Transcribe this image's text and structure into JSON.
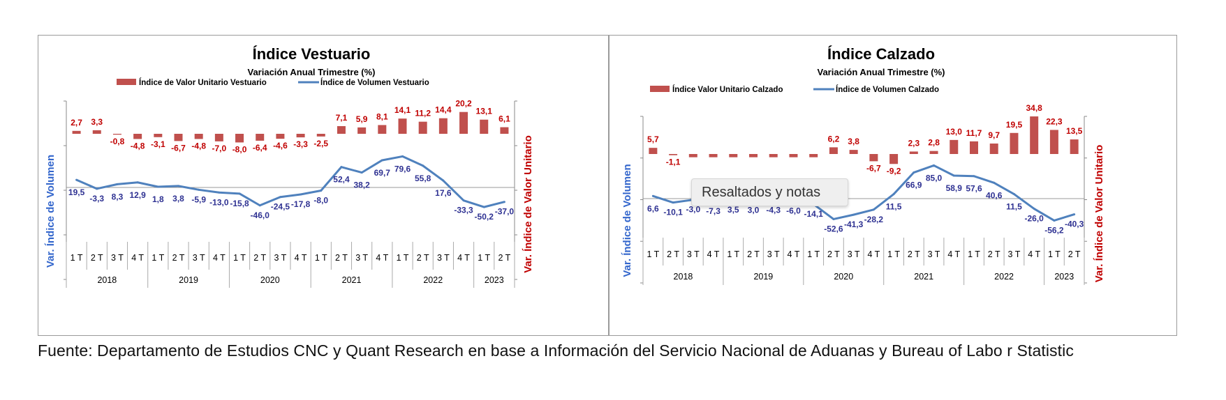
{
  "chart_data": [
    {
      "type": "bar",
      "title": "Índice Vestuario",
      "subtitle": "Variación Anual Trimestre  (%)",
      "ylabel_left": "Var. Índice de Volumen",
      "ylabel_right": "Var. Índice de Valor Unitario",
      "legend_position": "top",
      "grid": false,
      "categories": [
        "1 T",
        "2 T",
        "3 T",
        "4 T",
        "1 T",
        "2 T",
        "3 T",
        "4 T",
        "1 T",
        "2 T",
        "3 T",
        "4 T",
        "1 T",
        "2 T",
        "3 T",
        "4 T",
        "1 T",
        "2 T",
        "3 T",
        "4 T",
        "1 T",
        "2 T"
      ],
      "years": [
        {
          "label": "2018",
          "count": 4
        },
        {
          "label": "2019",
          "count": 4
        },
        {
          "label": "2020",
          "count": 4
        },
        {
          "label": "2021",
          "count": 4
        },
        {
          "label": "2022",
          "count": 4
        },
        {
          "label": "2023",
          "count": 2
        }
      ],
      "series": [
        {
          "name": "Índice de Valor Unitario Vestuario",
          "kind": "bar",
          "axis": "right",
          "color": "#c0504d",
          "values": [
            2.7,
            3.3,
            -0.8,
            -4.8,
            -3.1,
            -6.7,
            -4.8,
            -7.0,
            -8.0,
            -6.4,
            -4.6,
            -3.3,
            -2.5,
            7.1,
            5.9,
            8.1,
            14.1,
            11.2,
            14.4,
            20.2,
            13.1,
            6.1
          ],
          "labels": [
            "2,7",
            "3,3",
            "-0,8",
            "-4,8",
            "-3,1",
            "-6,7",
            "-4,8",
            "-7,0",
            "-8,0",
            "-6,4",
            "-4,6",
            "-3,3",
            "-2,5",
            "7,1",
            "5,9",
            "8,1",
            "14,1",
            "11,2",
            "14,4",
            "20,2",
            "13,1",
            "6,1"
          ]
        },
        {
          "name": "Índice de Volumen Vestuario",
          "kind": "line",
          "axis": "left",
          "color": "#4f81bd",
          "values": [
            19.5,
            -3.3,
            8.3,
            12.9,
            1.8,
            3.8,
            -5.9,
            -13.0,
            -15.8,
            -46.0,
            -24.5,
            -17.8,
            -8.0,
            52.4,
            38.2,
            69.7,
            79.6,
            55.8,
            17.6,
            -33.3,
            -50.2,
            -37.0
          ],
          "labels": [
            "19,5",
            "-3,3",
            "8,3",
            "12,9",
            "1,8",
            "3,8",
            "-5,9",
            "-13,0",
            "-15,8",
            "-46,0",
            "-24,5",
            "-17,8",
            "-8,0",
            "52,4",
            "38,2",
            "69,7",
            "79,6",
            "55,8",
            "17,6",
            "-33,3",
            "-50,2",
            "-37,0"
          ]
        }
      ]
    },
    {
      "type": "bar",
      "title": "Índice Calzado",
      "subtitle": "Variación Anual Trimestre  (%)",
      "ylabel_left": "Var. Índice de Volumen",
      "ylabel_right": "Var. Índice de Valor Unitario",
      "legend_position": "top",
      "grid": false,
      "categories": [
        "1 T",
        "2 T",
        "3 T",
        "4 T",
        "1 T",
        "2 T",
        "3 T",
        "4 T",
        "1 T",
        "2 T",
        "3 T",
        "4 T",
        "1 T",
        "2 T",
        "3 T",
        "4 T",
        "1 T",
        "2 T",
        "3 T",
        "4 T",
        "1 T",
        "2 T"
      ],
      "years": [
        {
          "label": "2018",
          "count": 4
        },
        {
          "label": "2019",
          "count": 4
        },
        {
          "label": "2020",
          "count": 4
        },
        {
          "label": "2021",
          "count": 4
        },
        {
          "label": "2022",
          "count": 4
        },
        {
          "label": "2023",
          "count": 2
        }
      ],
      "series": [
        {
          "name": "Índice Valor Unitario Calzado",
          "kind": "bar",
          "axis": "right",
          "color": "#c0504d",
          "values": [
            5.7,
            -1.1,
            -3.0,
            -3.0,
            -3.0,
            -3.0,
            -3.0,
            -3.0,
            -3.0,
            6.2,
            3.8,
            -6.7,
            -9.2,
            2.3,
            2.8,
            13.0,
            11.7,
            9.7,
            19.5,
            34.8,
            22.3,
            13.5
          ],
          "labels": [
            "5,7",
            "-1,1",
            "",
            "",
            "",
            "",
            "",
            "",
            "",
            "6,2",
            "3,8",
            "-6,7",
            "-9,2",
            "2,3",
            "2,8",
            "13,0",
            "11,7",
            "9,7",
            "19,5",
            "34,8",
            "22,3",
            "13,5"
          ]
        },
        {
          "name": "Índice de Volumen Calzado",
          "kind": "line",
          "axis": "left",
          "color": "#4f81bd",
          "values": [
            6.6,
            -10.1,
            -3.0,
            -7.3,
            3.5,
            3.0,
            -4.3,
            -6.0,
            -14.1,
            -52.6,
            -41.3,
            -28.2,
            11.5,
            66.9,
            85.0,
            58.9,
            57.6,
            40.6,
            11.5,
            -26.0,
            -56.2,
            -40.3
          ],
          "labels": [
            "6,6",
            "-10,1",
            "-3,0",
            "-7,3",
            "3,5",
            "3,0",
            "-4,3",
            "-6,0",
            "-14,1",
            "-52,6",
            "-41,3",
            "-28,2",
            "11,5",
            "66,9",
            "85,0",
            "58,9",
            "57,6",
            "40,6",
            "11,5",
            "-26,0",
            "-56,2",
            "-40,3"
          ]
        }
      ]
    }
  ],
  "source_text": "Fuente: Departamento de Estudios CNC y Quant Research en base a Información del Servicio Nacional de Aduanas y Bureau of Labo r Statistic",
  "tooltip_text": "Resaltados y notas"
}
